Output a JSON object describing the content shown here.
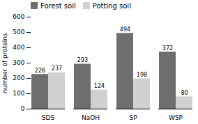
{
  "chart_data": {
    "type": "bar",
    "categories": [
      "SDS",
      "NaOH",
      "SP",
      "WSP"
    ],
    "series": [
      {
        "name": "Forest soil",
        "color": "#6e6e6e",
        "values": [
          226,
          293,
          494,
          372
        ]
      },
      {
        "name": "Potting soil",
        "color": "#d0d0d0",
        "values": [
          237,
          124,
          198,
          80
        ]
      }
    ],
    "ylabel": "number of proteins",
    "ylim": [
      0,
      600
    ],
    "yticks": [
      0,
      100,
      200,
      300,
      400,
      500,
      600
    ],
    "data_labels": true,
    "grid": false,
    "legend": "upper left"
  }
}
